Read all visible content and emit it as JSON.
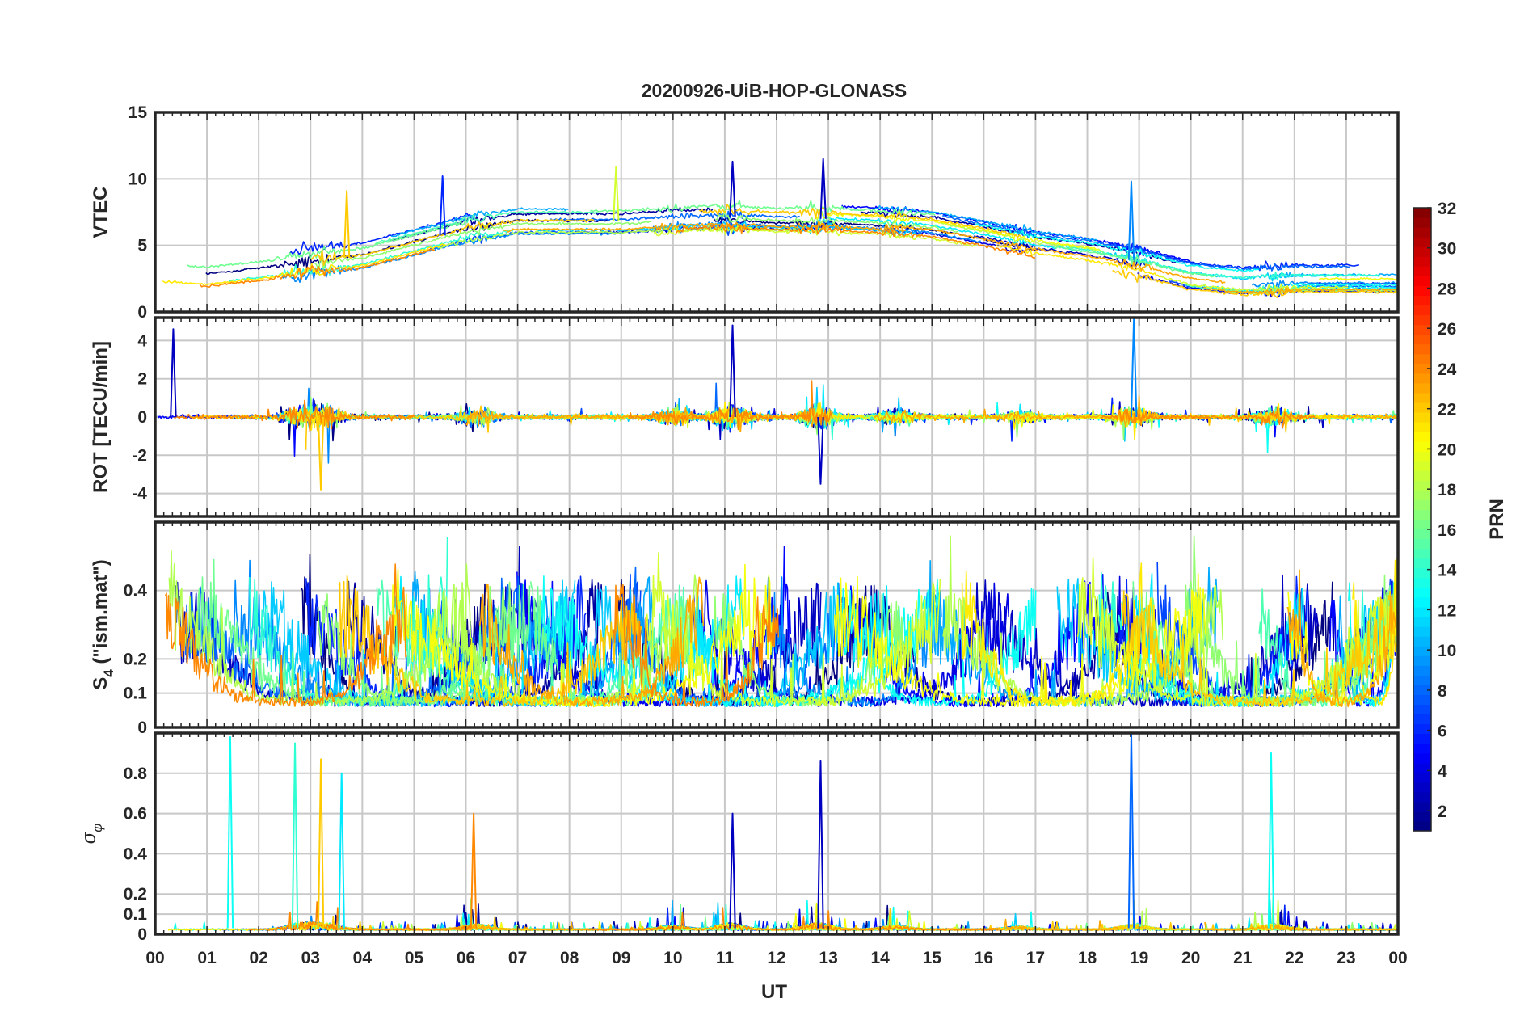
{
  "title": "20200926-UiB-HOP-GLONASS",
  "chart_data": {
    "type": "line",
    "title": "20200926-UiB-HOP-GLONASS",
    "xlabel": "UT",
    "x_ticks": [
      "00",
      "01",
      "02",
      "03",
      "04",
      "05",
      "06",
      "07",
      "08",
      "09",
      "10",
      "11",
      "12",
      "13",
      "14",
      "15",
      "16",
      "17",
      "18",
      "19",
      "20",
      "21",
      "22",
      "23",
      "00"
    ],
    "xlim": [
      0,
      24
    ],
    "grid": true,
    "colormap": "jet",
    "colorbar": {
      "label": "PRN",
      "range": [
        1,
        32
      ],
      "ticks": [
        2,
        4,
        6,
        8,
        10,
        12,
        14,
        16,
        18,
        20,
        22,
        24,
        26,
        28,
        30,
        32
      ],
      "placement": "right"
    },
    "panels": [
      {
        "name": "vtec",
        "ylabel": "VTEC",
        "ylim": [
          0,
          15
        ],
        "y_ticks": [
          0,
          5,
          10,
          15
        ],
        "y_tick_labels": [
          "0",
          "5",
          "10",
          "15"
        ],
        "kind": "vtec"
      },
      {
        "name": "rot",
        "ylabel": "ROT [TECU/min]",
        "ylim": [
          -5.2,
          5.2
        ],
        "y_ticks": [
          -4,
          -2,
          0,
          2,
          4
        ],
        "y_tick_labels": [
          "-4",
          "-2",
          "0",
          "2",
          "4"
        ],
        "kind": "rot"
      },
      {
        "name": "s4",
        "ylabel_main": "S",
        "ylabel_sub": "4",
        "ylabel_rest": " (\"ism.mat\")",
        "ylim": [
          0,
          0.6
        ],
        "y_ticks": [
          0,
          0.1,
          0.2,
          0.4
        ],
        "y_tick_labels": [
          "0",
          "0.1",
          "0.2",
          "0.4"
        ],
        "kind": "s4"
      },
      {
        "name": "sigma_phi",
        "ylabel_main": "σ",
        "ylabel_sub": "φ",
        "ylim": [
          0,
          1.0
        ],
        "y_ticks": [
          0,
          0.1,
          0.2,
          0.4,
          0.6,
          0.8
        ],
        "y_tick_labels": [
          "0",
          "0.1",
          "0.2",
          "0.4",
          "0.6",
          "0.8"
        ],
        "kind": "sigma"
      }
    ],
    "series_note_prn": [
      1,
      2,
      3,
      4,
      5,
      6,
      7,
      8,
      9,
      10,
      11,
      12,
      13,
      14,
      15,
      16,
      17,
      18,
      19,
      20,
      21,
      22,
      23,
      24
    ],
    "vtec_envelope": {
      "x": [
        0,
        1,
        2,
        3,
        4,
        5,
        6,
        7,
        8,
        9,
        10,
        11,
        12,
        13,
        14,
        15,
        16,
        17,
        18,
        19,
        20,
        21,
        22,
        23,
        24
      ],
      "y": [
        3,
        2.8,
        3.2,
        3.8,
        4.2,
        5.2,
        6.2,
        6.8,
        6.8,
        6.8,
        7,
        7.2,
        7,
        7,
        6.8,
        6.5,
        5.8,
        5,
        4.5,
        3.8,
        2.8,
        2.4,
        2.6,
        2.6,
        2.6
      ]
    },
    "events": [
      {
        "panel": "vtec",
        "x": 3.7,
        "y": 9.1,
        "prn": 22
      },
      {
        "panel": "vtec",
        "x": 5.55,
        "y": 10.2,
        "prn": 6
      },
      {
        "panel": "vtec",
        "x": 8.9,
        "y": 10.9,
        "prn": 19
      },
      {
        "panel": "vtec",
        "x": 11.15,
        "y": 11.3,
        "prn": 3
      },
      {
        "panel": "vtec",
        "x": 12.9,
        "y": 11.5,
        "prn": 3
      },
      {
        "panel": "vtec",
        "x": 18.85,
        "y": 9.8,
        "prn": 9
      },
      {
        "panel": "rot",
        "x": 0.35,
        "y": 4.6,
        "prn": 3
      },
      {
        "panel": "rot",
        "x": 11.15,
        "y": 4.8,
        "prn": 3
      },
      {
        "panel": "rot",
        "x": 18.9,
        "y": 5.2,
        "prn": 9
      },
      {
        "panel": "rot",
        "x": 3.2,
        "y": -3.8,
        "prn": 22
      },
      {
        "panel": "rot",
        "x": 12.85,
        "y": -3.5,
        "prn": 3
      },
      {
        "panel": "sigma_phi",
        "x": 1.45,
        "y": 0.98,
        "prn": 13
      },
      {
        "panel": "sigma_phi",
        "x": 2.7,
        "y": 0.95,
        "prn": 14
      },
      {
        "panel": "sigma_phi",
        "x": 3.2,
        "y": 0.87,
        "prn": 22
      },
      {
        "panel": "sigma_phi",
        "x": 3.6,
        "y": 0.8,
        "prn": 12
      },
      {
        "panel": "sigma_phi",
        "x": 6.15,
        "y": 0.6,
        "prn": 24
      },
      {
        "panel": "sigma_phi",
        "x": 11.15,
        "y": 0.6,
        "prn": 3
      },
      {
        "panel": "sigma_phi",
        "x": 12.85,
        "y": 0.86,
        "prn": 3
      },
      {
        "panel": "sigma_phi",
        "x": 18.85,
        "y": 1.0,
        "prn": 8
      },
      {
        "panel": "sigma_phi",
        "x": 21.55,
        "y": 0.9,
        "prn": 13
      }
    ]
  }
}
